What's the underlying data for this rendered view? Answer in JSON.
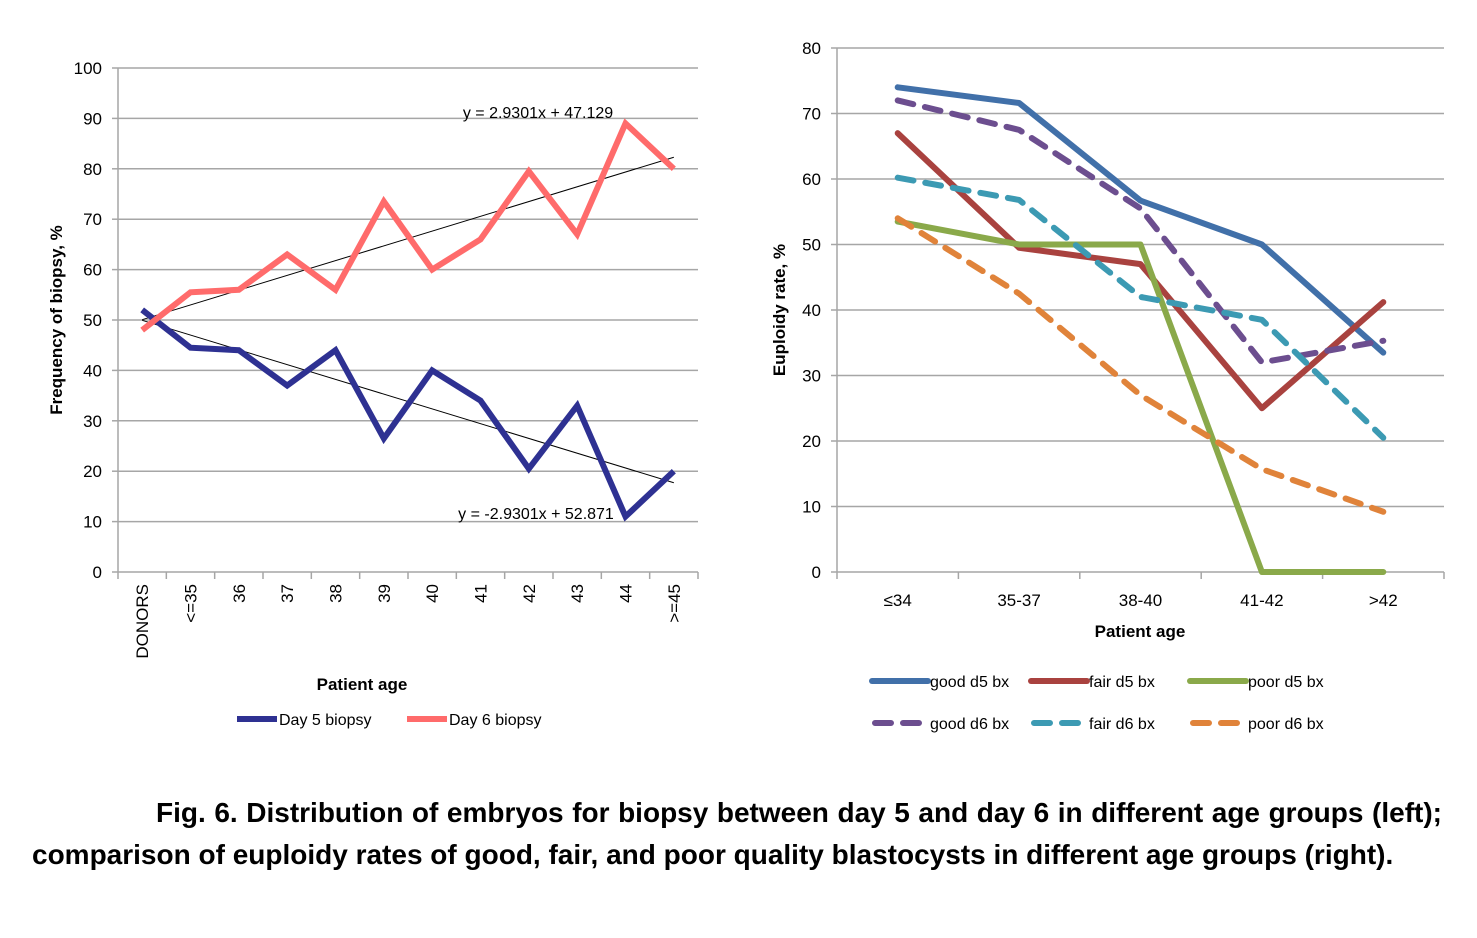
{
  "chart_data": [
    {
      "type": "line",
      "id": "left",
      "title": "",
      "xlabel": "Patient age",
      "ylabel": "Frequency of biopsy, %",
      "ylim": [
        0,
        100
      ],
      "yticks": [
        0,
        10,
        20,
        30,
        40,
        50,
        60,
        70,
        80,
        90,
        100
      ],
      "grid": true,
      "legend_position": "bottom",
      "categories": [
        "DONORS",
        "<=35",
        "36",
        "37",
        "38",
        "39",
        "40",
        "41",
        "42",
        "43",
        "44",
        ">=45"
      ],
      "series": [
        {
          "name": "Day 5 biopsy",
          "color": "#2E3192",
          "dash": false,
          "values": [
            52,
            44.5,
            44,
            37,
            44,
            26.5,
            40,
            34,
            20.5,
            33,
            11,
            20
          ]
        },
        {
          "name": "Day 6 biopsy",
          "color": "#FF6B6B",
          "dash": false,
          "values": [
            48,
            55.5,
            56,
            63,
            56,
            73.5,
            60,
            66,
            79.5,
            67,
            89,
            80
          ]
        }
      ],
      "trendlines": [
        {
          "series": "Day 6 biopsy",
          "slope": 2.9301,
          "intercept": 47.129,
          "label": "y = 2.9301x + 47.129"
        },
        {
          "series": "Day 5 biopsy",
          "slope": -2.9301,
          "intercept": 52.871,
          "label": "y = -2.9301x + 52.871"
        }
      ]
    },
    {
      "type": "line",
      "id": "right",
      "title": "",
      "xlabel": "Patient age",
      "ylabel": "Euploidy rate, %",
      "ylim": [
        0,
        80
      ],
      "yticks": [
        0,
        10,
        20,
        30,
        40,
        50,
        60,
        70,
        80
      ],
      "grid": true,
      "legend_position": "bottom",
      "categories": [
        "≤34",
        "35-37",
        "38-40",
        "41-42",
        ">42"
      ],
      "series": [
        {
          "name": "good d5 bx",
          "color": "#4170A9",
          "dash": false,
          "values": [
            74,
            71.6,
            56.7,
            50,
            33.5
          ]
        },
        {
          "name": "fair d5 bx",
          "color": "#A9423F",
          "dash": false,
          "values": [
            67,
            49.5,
            47,
            25,
            41.2
          ]
        },
        {
          "name": "poor d5 bx",
          "color": "#8AA94A",
          "dash": false,
          "values": [
            53.5,
            50,
            50,
            0,
            0
          ]
        },
        {
          "name": "good d6 bx",
          "color": "#6C4E8F",
          "dash": true,
          "values": [
            72,
            67.5,
            55.5,
            32,
            35.3
          ]
        },
        {
          "name": "fair d6 bx",
          "color": "#3C9AB3",
          "dash": true,
          "values": [
            60.2,
            56.8,
            42,
            38.5,
            20.5
          ]
        },
        {
          "name": "poor d6 bx",
          "color": "#E0833A",
          "dash": true,
          "values": [
            54,
            42.5,
            27,
            15.7,
            9.2
          ]
        }
      ]
    }
  ],
  "caption": {
    "text": "Fig. 6. Distribution of embryos for biopsy between day 5 and day 6 in different age groups (left); comparison of euploidy rates of good, fair, and poor quality blastocysts in different age groups (right)."
  }
}
